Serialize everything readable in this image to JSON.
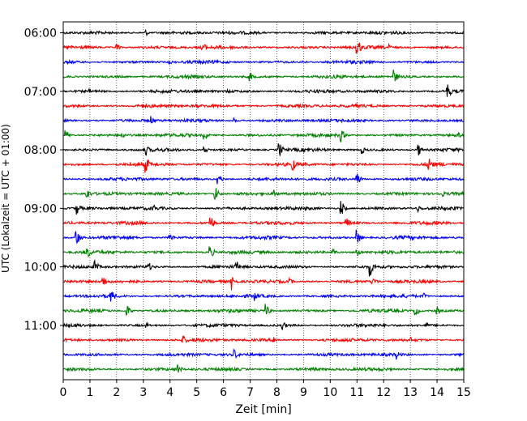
{
  "chart_data": {
    "type": "line",
    "xlabel": "Zeit  [min]",
    "ylabel": "UTC (Lokalzeit = UTC + 01:00)",
    "xlim": [
      0,
      15
    ],
    "x_ticks": [
      "0",
      "1",
      "2",
      "3",
      "4",
      "5",
      "6",
      "7",
      "8",
      "9",
      "10",
      "11",
      "12",
      "13",
      "14",
      "15"
    ],
    "y_ticks": [
      "06:00",
      "07:00",
      "08:00",
      "09:00",
      "10:00",
      "11:00"
    ],
    "x_grid": "dotted vertical at each minute",
    "legend": "none",
    "trace_colors": [
      "#000000",
      "#ff0000",
      "#0000ff",
      "#008000"
    ],
    "traces": [
      {
        "start": "06:00",
        "color": "#000000",
        "events": [
          [
            3.1,
            4
          ],
          [
            6.0,
            3
          ]
        ]
      },
      {
        "start": "06:15",
        "color": "#ff0000",
        "events": [
          [
            2.0,
            5
          ],
          [
            5.2,
            9
          ],
          [
            11.0,
            14
          ],
          [
            12.2,
            4
          ]
        ]
      },
      {
        "start": "06:30",
        "color": "#0000ff",
        "events": [
          [
            4.0,
            3
          ],
          [
            9.0,
            3
          ]
        ]
      },
      {
        "start": "06:45",
        "color": "#008000",
        "events": [
          [
            7.0,
            6
          ],
          [
            12.4,
            9
          ]
        ]
      },
      {
        "start": "07:00",
        "color": "#000000",
        "events": [
          [
            1.0,
            3
          ],
          [
            6.2,
            3
          ],
          [
            14.4,
            10
          ]
        ]
      },
      {
        "start": "07:15",
        "color": "#ff0000",
        "events": [
          [
            3.0,
            3
          ],
          [
            5.0,
            3
          ],
          [
            11.0,
            4
          ]
        ]
      },
      {
        "start": "07:30",
        "color": "#0000ff",
        "events": [
          [
            3.3,
            6
          ],
          [
            6.4,
            4
          ],
          [
            11.0,
            4
          ]
        ]
      },
      {
        "start": "07:45",
        "color": "#008000",
        "events": [
          [
            0.1,
            7
          ],
          [
            2.2,
            5
          ],
          [
            5.3,
            6
          ],
          [
            10.4,
            9
          ],
          [
            14.8,
            4
          ]
        ]
      },
      {
        "start": "08:00",
        "color": "#000000",
        "events": [
          [
            3.1,
            7
          ],
          [
            5.3,
            5
          ],
          [
            8.1,
            10
          ],
          [
            11.2,
            5
          ],
          [
            13.3,
            8
          ]
        ]
      },
      {
        "start": "08:15",
        "color": "#ff0000",
        "events": [
          [
            3.1,
            11
          ],
          [
            8.6,
            9
          ],
          [
            13.7,
            11
          ]
        ]
      },
      {
        "start": "08:30",
        "color": "#0000ff",
        "events": [
          [
            5.8,
            8
          ],
          [
            11.0,
            10
          ]
        ]
      },
      {
        "start": "08:45",
        "color": "#008000",
        "events": [
          [
            0.9,
            7
          ],
          [
            5.7,
            9
          ],
          [
            7.9,
            5
          ],
          [
            14.2,
            4
          ]
        ]
      },
      {
        "start": "09:00",
        "color": "#000000",
        "events": [
          [
            0.5,
            9
          ],
          [
            3.4,
            5
          ],
          [
            10.4,
            11
          ],
          [
            13.3,
            5
          ]
        ]
      },
      {
        "start": "09:15",
        "color": "#ff0000",
        "events": [
          [
            5.5,
            12
          ],
          [
            10.6,
            8
          ]
        ]
      },
      {
        "start": "09:30",
        "color": "#0000ff",
        "events": [
          [
            0.5,
            11
          ],
          [
            4.0,
            6
          ],
          [
            11.0,
            10
          ]
        ]
      },
      {
        "start": "09:45",
        "color": "#008000",
        "events": [
          [
            0.9,
            9
          ],
          [
            5.5,
            9
          ],
          [
            10.1,
            5
          ],
          [
            11.0,
            8
          ]
        ]
      },
      {
        "start": "10:00",
        "color": "#000000",
        "events": [
          [
            1.2,
            8
          ],
          [
            3.2,
            6
          ],
          [
            6.5,
            7
          ],
          [
            11.5,
            12
          ]
        ]
      },
      {
        "start": "10:15",
        "color": "#ff0000",
        "events": [
          [
            1.5,
            8
          ],
          [
            6.3,
            11
          ],
          [
            8.5,
            4
          ],
          [
            11.6,
            7
          ]
        ]
      },
      {
        "start": "10:30",
        "color": "#0000ff",
        "events": [
          [
            1.8,
            9
          ],
          [
            7.2,
            6
          ],
          [
            13.5,
            4
          ]
        ]
      },
      {
        "start": "10:45",
        "color": "#008000",
        "events": [
          [
            2.4,
            7
          ],
          [
            7.6,
            9
          ],
          [
            13.2,
            7
          ],
          [
            14.0,
            5
          ]
        ]
      },
      {
        "start": "11:00",
        "color": "#000000",
        "events": [
          [
            3.1,
            4
          ],
          [
            8.2,
            7
          ],
          [
            13.6,
            4
          ]
        ]
      },
      {
        "start": "11:15",
        "color": "#ff0000",
        "events": [
          [
            4.5,
            6
          ],
          [
            7.9,
            5
          ],
          [
            13.0,
            4
          ]
        ]
      },
      {
        "start": "11:30",
        "color": "#0000ff",
        "events": [
          [
            6.4,
            8
          ],
          [
            12.5,
            6
          ]
        ]
      },
      {
        "start": "11:45",
        "color": "#008000",
        "events": [
          [
            4.3,
            7
          ],
          [
            9.4,
            4
          ]
        ]
      }
    ]
  }
}
